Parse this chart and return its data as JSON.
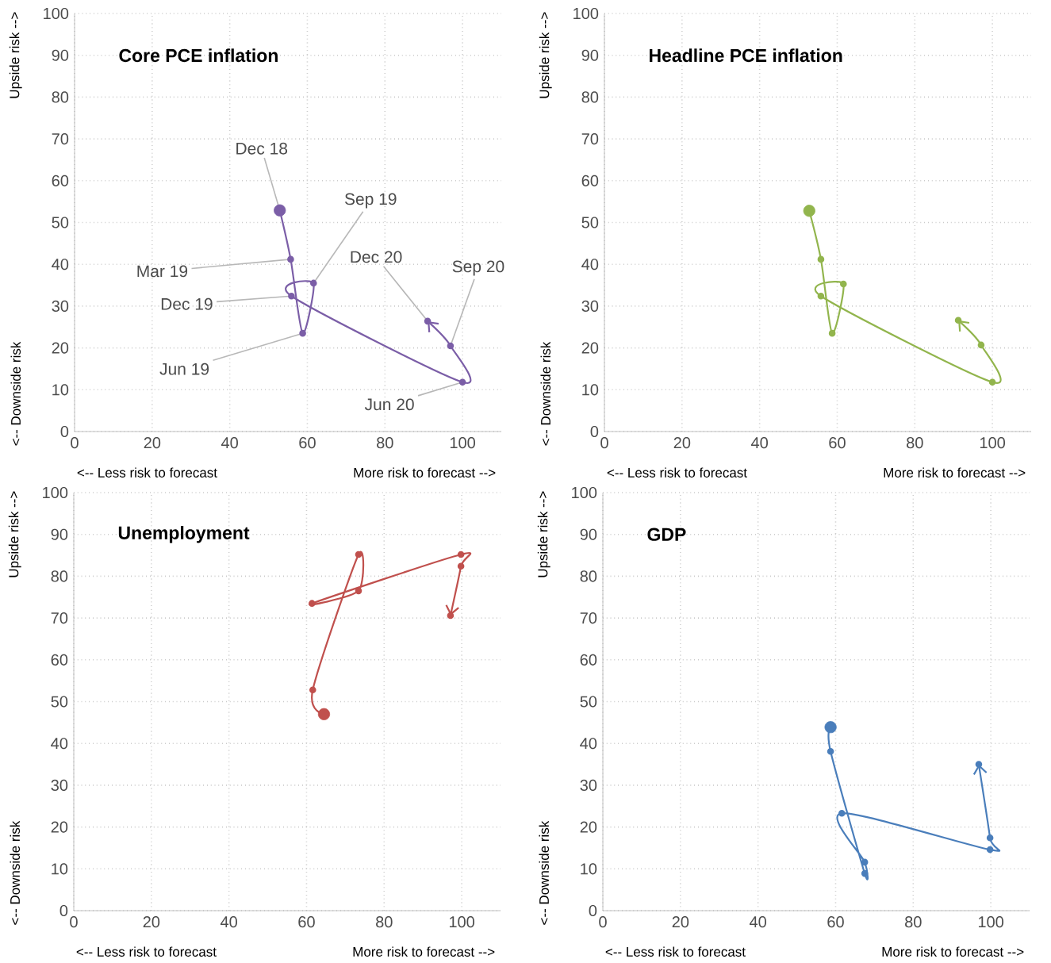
{
  "chart_data": [
    {
      "type": "line",
      "title": "Core PCE inflation",
      "xlabel": "<-- Less risk to forecast",
      "ylabel": "<-- Downside risk",
      "annotations": [
        "More risk to forecast -->",
        "Upside risk -->",
        {
          "text": "Dec 18",
          "x": 52.9,
          "y": 52.9
        },
        {
          "text": "Mar 19",
          "x": 55.7,
          "y": 41.2
        },
        {
          "text": "Jun 19",
          "x": 58.8,
          "y": 23.5
        },
        {
          "text": "Sep 19",
          "x": 61.6,
          "y": 35.5
        },
        {
          "text": "Dec 19",
          "x": 55.9,
          "y": 32.4
        },
        {
          "text": "Jun 20",
          "x": 100,
          "y": 11.8
        },
        {
          "text": "Sep 20",
          "x": 96.9,
          "y": 20.5
        },
        {
          "text": "Dec 20",
          "x": 91,
          "y": 26.4
        }
      ],
      "x": [
        52.9,
        55.7,
        58.8,
        61.6,
        55.9,
        100,
        96.9,
        91
      ],
      "values": [
        52.9,
        41.2,
        23.5,
        35.5,
        32.4,
        11.8,
        20.5,
        26.4
      ],
      "color": "#7b5ea7",
      "xlim": [
        0,
        110
      ],
      "ylim": [
        0,
        100
      ],
      "xticks": [
        0,
        20,
        40,
        60,
        80,
        100
      ],
      "yticks": [
        0,
        10,
        20,
        30,
        40,
        50,
        60,
        70,
        80,
        90,
        100
      ],
      "grid": true,
      "marker": "circle",
      "line_style": "solid"
    },
    {
      "type": "line",
      "title": "Headline PCE inflation",
      "xlabel": "<-- Less risk to forecast",
      "ylabel": "<-- Downside risk",
      "annotations": [
        "More risk to forecast -->",
        "Upside risk -->"
      ],
      "x": [
        52.8,
        55.8,
        58.7,
        61.6,
        55.8,
        100,
        97.1,
        91.2
      ],
      "values": [
        52.8,
        41.2,
        23.5,
        35.3,
        32.4,
        11.8,
        20.7,
        26.6
      ],
      "color": "#92b54d",
      "xlim": [
        0,
        110
      ],
      "ylim": [
        0,
        100
      ],
      "xticks": [
        0,
        20,
        40,
        60,
        80,
        100
      ],
      "yticks": [
        0,
        10,
        20,
        30,
        40,
        50,
        60,
        70,
        80,
        90,
        100
      ],
      "grid": true,
      "marker": "circle",
      "line_style": "solid"
    },
    {
      "type": "line",
      "title": "Unemployment",
      "xlabel": "<-- Less risk to forecast",
      "ylabel": "<-- Downside risk",
      "annotations": [
        "More risk to forecast -->",
        "Upside risk -->"
      ],
      "x": [
        64.5,
        61.6,
        73.4,
        73.4,
        61.4,
        99.8,
        99.8,
        97.1
      ],
      "values": [
        47.0,
        52.8,
        85.2,
        76.5,
        73.5,
        85.2,
        82.4,
        70.6
      ],
      "color": "#c0504d",
      "xlim": [
        0,
        110
      ],
      "ylim": [
        0,
        100
      ],
      "xticks": [
        0,
        20,
        40,
        60,
        80,
        100
      ],
      "yticks": [
        0,
        10,
        20,
        30,
        40,
        50,
        60,
        70,
        80,
        90,
        100
      ],
      "grid": true,
      "marker": "circle",
      "line_style": "solid"
    },
    {
      "type": "line",
      "title": "GDP",
      "xlabel": "<-- Less risk to forecast",
      "ylabel": "<-- Downside risk",
      "annotations": [
        "More risk to forecast -->",
        "Upside risk -->"
      ],
      "x": [
        58.7,
        58.7,
        67.5,
        67.5,
        61.6,
        99.8,
        99.8,
        96.9
      ],
      "values": [
        43.9,
        38.1,
        8.9,
        11.6,
        23.3,
        14.6,
        17.4,
        35.0
      ],
      "color": "#4a7ebb",
      "xlim": [
        0,
        110
      ],
      "ylim": [
        0,
        100
      ],
      "xticks": [
        0,
        20,
        40,
        60,
        80,
        100
      ],
      "yticks": [
        0,
        10,
        20,
        30,
        40,
        50,
        60,
        70,
        80,
        90,
        100
      ],
      "grid": true,
      "marker": "circle",
      "line_style": "solid"
    }
  ]
}
